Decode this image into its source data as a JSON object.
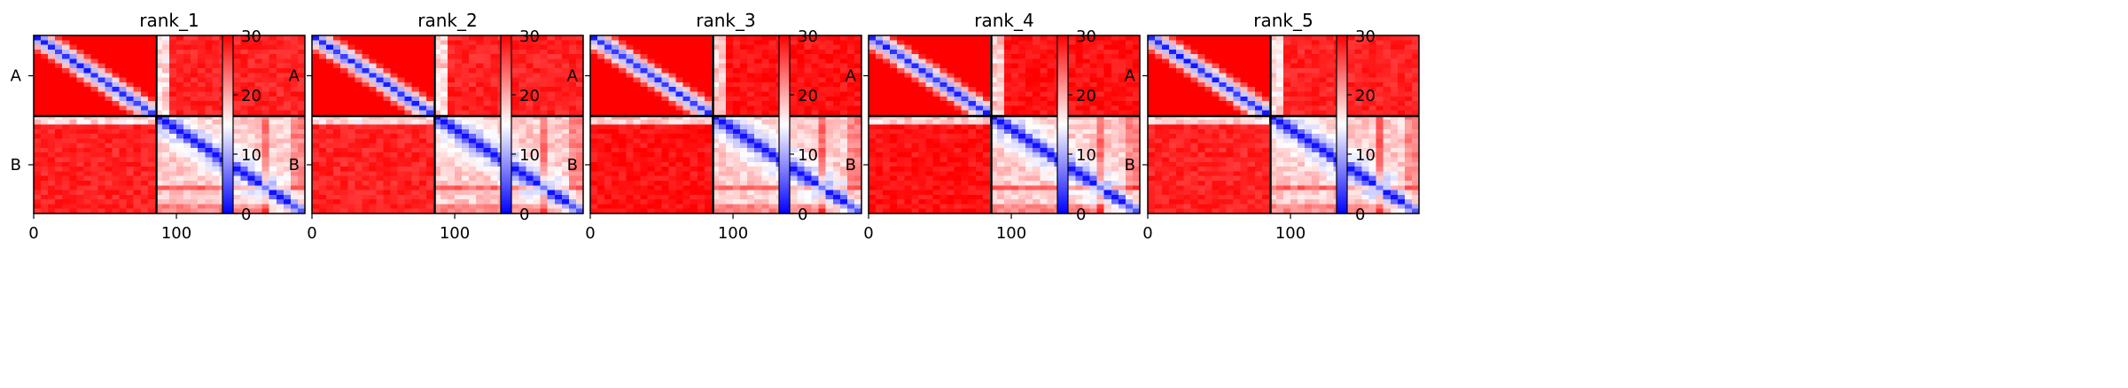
{
  "chart_data": [
    {
      "type": "heatmap",
      "title": "rank_1",
      "xlabel": "",
      "ylabel": "",
      "x_ticks": [
        0,
        100
      ],
      "y_ticks": [
        "A",
        "B"
      ],
      "xlim": [
        0,
        190
      ],
      "ylim": [
        0,
        190
      ],
      "chain_boundary": 86,
      "colorbar": {
        "min": 0,
        "max": 30,
        "ticks": [
          0,
          10,
          20,
          30
        ]
      },
      "colormap": [
        "#0000ff",
        "#ffffff",
        "#ff0000"
      ],
      "intra_chain_B_level": 8,
      "inter_chain_level": 28
    },
    {
      "type": "heatmap",
      "title": "rank_2",
      "xlabel": "",
      "ylabel": "",
      "x_ticks": [
        0,
        100
      ],
      "y_ticks": [
        "A",
        "B"
      ],
      "xlim": [
        0,
        190
      ],
      "ylim": [
        0,
        190
      ],
      "chain_boundary": 86,
      "colorbar": {
        "min": 0,
        "max": 30,
        "ticks": [
          0,
          10,
          20,
          30
        ]
      },
      "colormap": [
        "#0000ff",
        "#ffffff",
        "#ff0000"
      ],
      "intra_chain_B_level": 8,
      "inter_chain_level": 28
    },
    {
      "type": "heatmap",
      "title": "rank_3",
      "xlabel": "",
      "ylabel": "",
      "x_ticks": [
        0,
        100
      ],
      "y_ticks": [
        "A",
        "B"
      ],
      "xlim": [
        0,
        190
      ],
      "ylim": [
        0,
        190
      ],
      "chain_boundary": 86,
      "colorbar": {
        "min": 0,
        "max": 30,
        "ticks": [
          0,
          10,
          20,
          30
        ]
      },
      "colormap": [
        "#0000ff",
        "#ffffff",
        "#ff0000"
      ],
      "intra_chain_B_level": 8,
      "inter_chain_level": 29
    },
    {
      "type": "heatmap",
      "title": "rank_4",
      "xlabel": "",
      "ylabel": "",
      "x_ticks": [
        0,
        100
      ],
      "y_ticks": [
        "A",
        "B"
      ],
      "xlim": [
        0,
        190
      ],
      "ylim": [
        0,
        190
      ],
      "chain_boundary": 86,
      "colorbar": {
        "min": 0,
        "max": 30,
        "ticks": [
          0,
          10,
          20,
          30
        ]
      },
      "colormap": [
        "#0000ff",
        "#ffffff",
        "#ff0000"
      ],
      "intra_chain_B_level": 8,
      "inter_chain_level": 29
    },
    {
      "type": "heatmap",
      "title": "rank_5",
      "xlabel": "",
      "ylabel": "",
      "x_ticks": [
        0,
        100
      ],
      "y_ticks": [
        "A",
        "B"
      ],
      "xlim": [
        0,
        190
      ],
      "ylim": [
        0,
        190
      ],
      "chain_boundary": 86,
      "colorbar": {
        "min": 0,
        "max": 30,
        "ticks": [
          0,
          10,
          20,
          30
        ]
      },
      "colormap": [
        "#0000ff",
        "#ffffff",
        "#ff0000"
      ],
      "intra_chain_B_level": 8,
      "inter_chain_level": 28
    }
  ]
}
